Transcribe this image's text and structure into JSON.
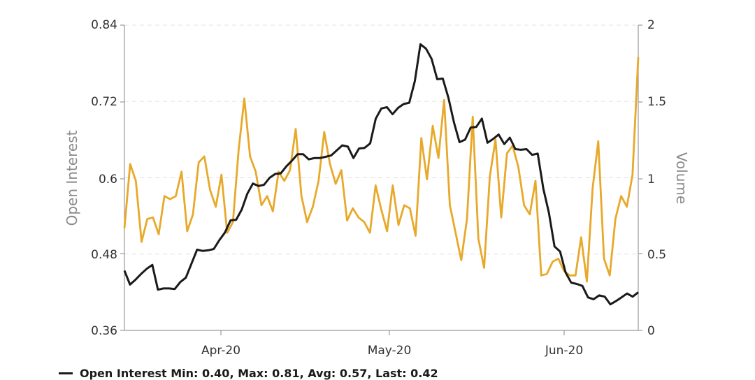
{
  "header": {
    "left_text": "",
    "center_text": ""
  },
  "legend": {
    "open_interest_summary": "Open Interest Min: 0.40, Max: 0.81, Avg: 0.57, Last: 0.42"
  },
  "chart_data": {
    "type": "line",
    "ylabel_left": "Open Interest",
    "ylabel_right": "Volume",
    "x_ticks": [
      "Apr-20",
      "May-20",
      "Jun-20"
    ],
    "y_left_ticks": [
      "0.84",
      "0.72",
      "0.6",
      "0.48",
      "0.36"
    ],
    "y_right_ticks": [
      "2",
      "1.5",
      "1",
      "0.5",
      "0"
    ],
    "y_left_range": [
      0.36,
      0.84
    ],
    "y_right_range": [
      0,
      2
    ],
    "grid": "horizontal dashed",
    "colors": {
      "open_interest": "#1a1a1a",
      "volume": "#e8a92a",
      "grid": "#e3e3e3",
      "axis": "#9a9a9a"
    },
    "series": [
      {
        "name": "Open Interest",
        "axis": "left",
        "values": [
          0.454,
          0.432,
          0.44,
          0.449,
          0.457,
          0.463,
          0.424,
          0.426,
          0.426,
          0.425,
          0.436,
          0.443,
          0.465,
          0.487,
          0.485,
          0.486,
          0.488,
          0.502,
          0.514,
          0.533,
          0.534,
          0.55,
          0.575,
          0.591,
          0.587,
          0.589,
          0.6,
          0.606,
          0.607,
          0.618,
          0.627,
          0.637,
          0.637,
          0.629,
          0.631,
          0.631,
          0.633,
          0.635,
          0.643,
          0.651,
          0.649,
          0.631,
          0.646,
          0.647,
          0.654,
          0.693,
          0.709,
          0.711,
          0.7,
          0.71,
          0.716,
          0.718,
          0.752,
          0.81,
          0.803,
          0.787,
          0.755,
          0.756,
          0.726,
          0.687,
          0.656,
          0.66,
          0.679,
          0.68,
          0.693,
          0.655,
          0.661,
          0.668,
          0.653,
          0.663,
          0.645,
          0.644,
          0.645,
          0.636,
          0.638,
          0.583,
          0.545,
          0.492,
          0.484,
          0.451,
          0.435,
          0.433,
          0.43,
          0.412,
          0.409,
          0.415,
          0.413,
          0.401,
          0.406,
          0.412,
          0.418,
          0.413,
          0.42
        ]
      },
      {
        "name": "Volume",
        "axis": "right",
        "values": [
          0.67,
          1.09,
          0.98,
          0.58,
          0.73,
          0.74,
          0.63,
          0.88,
          0.86,
          0.88,
          1.04,
          0.65,
          0.76,
          1.1,
          1.14,
          0.92,
          0.81,
          1.02,
          0.64,
          0.71,
          1.18,
          1.52,
          1.14,
          1.04,
          0.82,
          0.88,
          0.78,
          1.04,
          0.98,
          1.05,
          1.32,
          0.88,
          0.71,
          0.81,
          0.98,
          1.3,
          1.09,
          0.96,
          1.05,
          0.72,
          0.8,
          0.74,
          0.71,
          0.64,
          0.95,
          0.79,
          0.65,
          0.95,
          0.69,
          0.82,
          0.8,
          0.62,
          1.26,
          0.99,
          1.34,
          1.13,
          1.51,
          0.82,
          0.64,
          0.46,
          0.73,
          1.4,
          0.6,
          0.41,
          1.01,
          1.25,
          0.74,
          1.16,
          1.21,
          1.07,
          0.82,
          0.76,
          0.98,
          0.36,
          0.37,
          0.45,
          0.47,
          0.39,
          0.36,
          0.36,
          0.61,
          0.32,
          0.93,
          1.24,
          0.47,
          0.36,
          0.73,
          0.88,
          0.81,
          1.02,
          1.79
        ]
      }
    ]
  }
}
